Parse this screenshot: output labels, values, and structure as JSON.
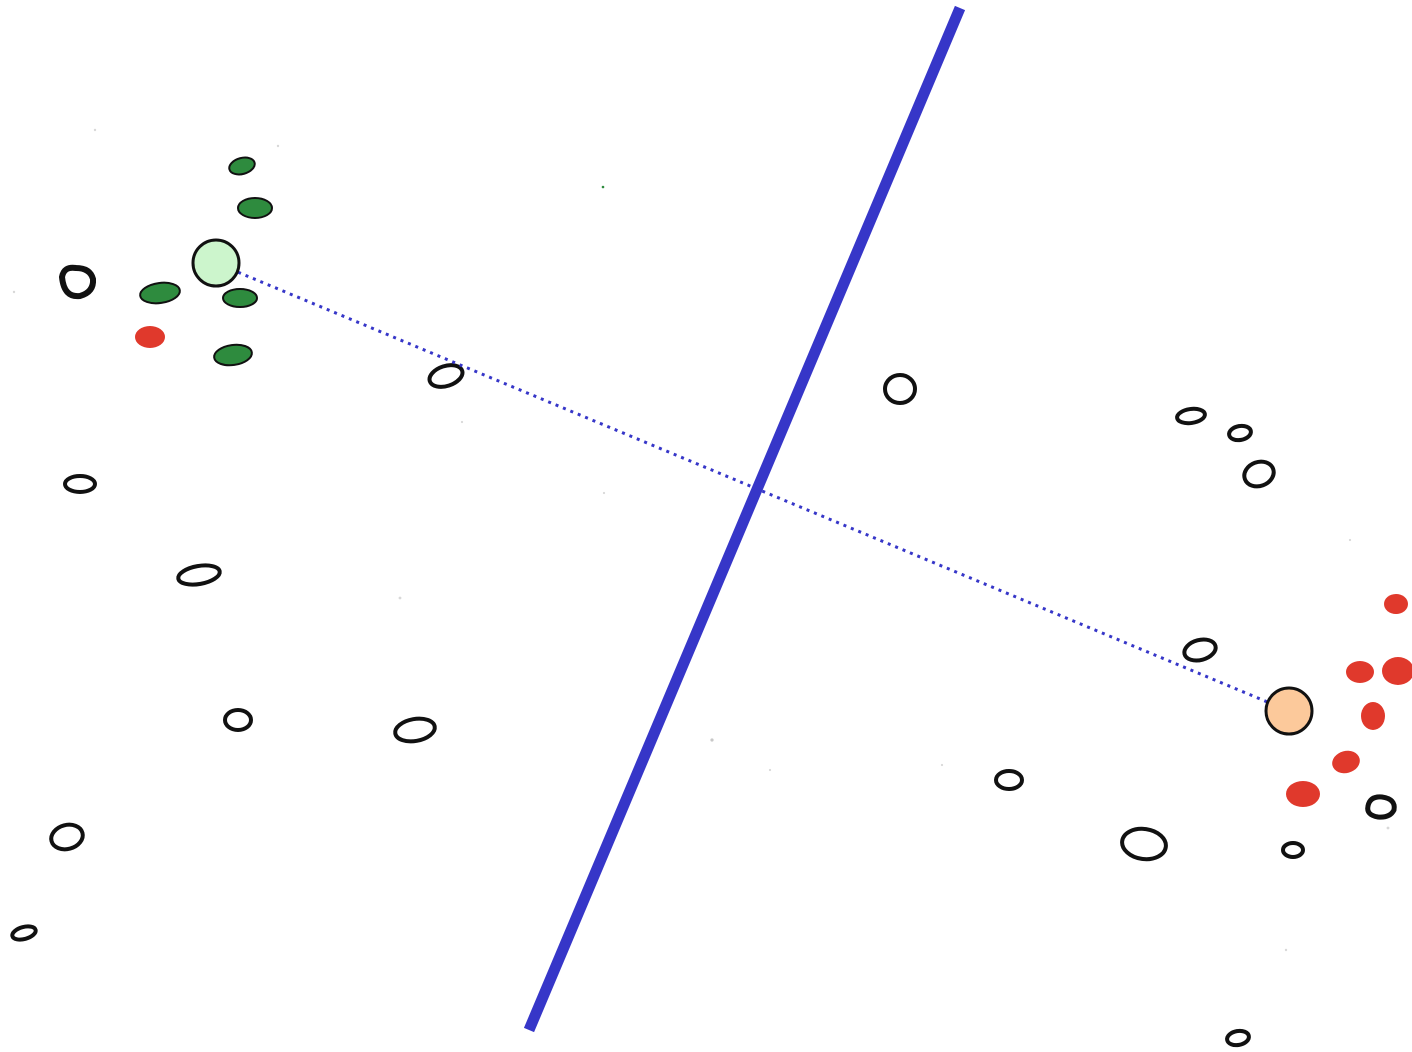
{
  "figure": {
    "description_type": "scatter-with-separating-line",
    "colors": {
      "background": "#ffffff",
      "outline": "#111111",
      "class_green": "#2e8b3e",
      "class_red": "#e0392c",
      "centroid_green_fill": "#ccf5cc",
      "centroid_orange_fill": "#fcc99b",
      "separator": "#3636c8",
      "connector": "#3636c8"
    },
    "legend": null
  }
}
